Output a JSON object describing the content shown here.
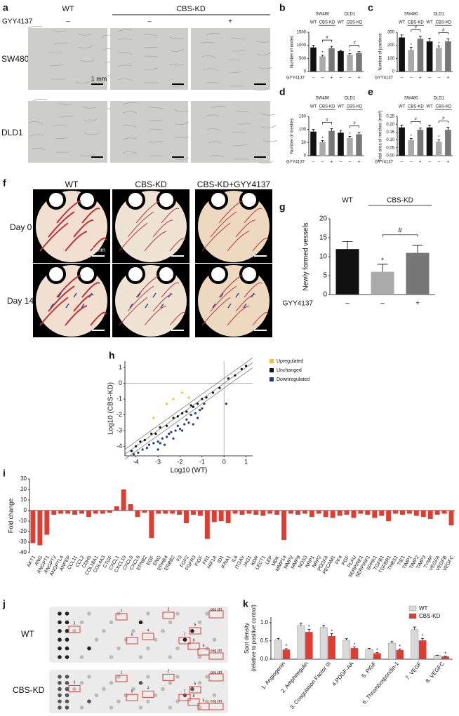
{
  "panel_a": {
    "letter": "a",
    "wt": "WT",
    "cbs_kd": "CBS-KD",
    "treatment_label": "GYY4137",
    "treatment": [
      "–",
      "–",
      "+"
    ],
    "rows": [
      "SW480",
      "DLD1"
    ],
    "scale_bar": "1 mm"
  },
  "panel_f": {
    "letter": "f",
    "columns": [
      "WT",
      "CBS-KD",
      "CBS-KD+GYY4137"
    ],
    "rows": [
      "Day 0",
      "Day 14"
    ],
    "scale_bar": "2 mm"
  },
  "panel_j": {
    "letter": "j",
    "rows": [
      "WT",
      "CBS-KD"
    ],
    "box_labels": [
      "1",
      "2",
      "3",
      "4",
      "5",
      "6",
      "7",
      "8",
      "9"
    ],
    "pos_ctrl": "pos ctrl",
    "neg_ctrl": "neg ctrl"
  },
  "chart_data": [
    {
      "type": "bar",
      "letter": "b",
      "ylabel": "Number of nodes",
      "groups": [
        "SW480",
        "DLD1"
      ],
      "subgroups": [
        "WT",
        "CBS-KD"
      ],
      "treatment_label": "GYY4137",
      "categories": [
        "–",
        "–",
        "+",
        "–",
        "–",
        "+"
      ],
      "values": [
        920,
        580,
        890,
        780,
        640,
        710
      ],
      "errors": [
        80,
        50,
        70,
        40,
        45,
        50
      ],
      "colors": [
        "#111111",
        "#aaaaaa",
        "#777777",
        "#111111",
        "#aaaaaa",
        "#777777"
      ],
      "ylim": [
        0,
        1500
      ],
      "yticks": [
        0,
        500,
        1000,
        1500
      ],
      "star": "*",
      "hash": "#"
    },
    {
      "type": "bar",
      "letter": "c",
      "ylabel": "Number of junctions",
      "groups": [
        "SW480",
        "DLD1"
      ],
      "subgroups": [
        "WT",
        "CBS-KD"
      ],
      "treatment_label": "GYY4137",
      "categories": [
        "–",
        "–",
        "+",
        "–",
        "–",
        "+"
      ],
      "values": [
        260,
        165,
        250,
        230,
        180,
        230
      ],
      "errors": [
        20,
        20,
        20,
        25,
        15,
        20
      ],
      "colors": [
        "#111111",
        "#aaaaaa",
        "#777777",
        "#111111",
        "#aaaaaa",
        "#777777"
      ],
      "ylim": [
        0,
        300
      ],
      "yticks": [
        0,
        100,
        200,
        300
      ],
      "star": "*",
      "hash": "#"
    },
    {
      "type": "bar",
      "letter": "d",
      "ylabel": "Number of meshes",
      "groups": [
        "SW480",
        "DLD1"
      ],
      "subgroups": [
        "WT",
        "CBS-KD"
      ],
      "treatment_label": "GYY4137",
      "categories": [
        "–",
        "–",
        "+",
        "–",
        "–",
        "+"
      ],
      "values": [
        92,
        52,
        95,
        88,
        68,
        82
      ],
      "errors": [
        8,
        6,
        8,
        8,
        6,
        8
      ],
      "colors": [
        "#111111",
        "#aaaaaa",
        "#777777",
        "#111111",
        "#aaaaaa",
        "#777777"
      ],
      "ylim": [
        0,
        150
      ],
      "yticks": [
        0,
        50,
        100,
        150
      ],
      "star": "*",
      "hash": "#"
    },
    {
      "type": "bar",
      "letter": "e",
      "ylabel": "Total area of meshes (mm²)",
      "groups": [
        "SW480",
        "DLD1"
      ],
      "subgroups": [
        "WT",
        "CBS-KD"
      ],
      "treatment_label": "GYY4137",
      "categories": [
        "–",
        "–",
        "+",
        "–",
        "–",
        "+"
      ],
      "values": [
        0.18,
        0.1,
        0.165,
        0.18,
        0.09,
        0.165
      ],
      "errors": [
        0.015,
        0.01,
        0.012,
        0.015,
        0.012,
        0.015
      ],
      "colors": [
        "#111111",
        "#aaaaaa",
        "#777777",
        "#111111",
        "#aaaaaa",
        "#777777"
      ],
      "ylim": [
        0,
        0.25
      ],
      "yticks": [
        {
          "value": 0,
          "label": "0.00"
        },
        {
          "value": 0.05,
          "label": "0.05"
        },
        {
          "value": 0.1,
          "label": "0.10"
        },
        {
          "value": 0.15,
          "label": "0.15"
        },
        {
          "value": 0.2,
          "label": "0.20"
        },
        {
          "value": 0.25,
          "label": "0.25"
        }
      ],
      "star": "*",
      "hash": "#"
    },
    {
      "type": "bar",
      "letter": "g",
      "ylabel": "Newly formed vessels",
      "subgroups": [
        "WT",
        "CBS-KD"
      ],
      "treatment_label": "GYY4137",
      "categories": [
        "–",
        "–",
        "+"
      ],
      "values": [
        12,
        6,
        11
      ],
      "errors": [
        2,
        2,
        2
      ],
      "colors": [
        "#111111",
        "#aaaaaa",
        "#777777"
      ],
      "ylim": [
        0,
        20
      ],
      "yticks": [
        0,
        5,
        10,
        15,
        20
      ],
      "star": "*",
      "hash": "#"
    },
    {
      "type": "scatter",
      "letter": "h",
      "xlabel": "Log10 (WT)",
      "ylabel": "Log10 (CBS-KD)",
      "xlim": [
        -4.5,
        1.3
      ],
      "ylim": [
        -4.6,
        1.4
      ],
      "xticks": [
        -4,
        -3,
        -2,
        -1,
        0,
        1
      ],
      "yticks": [
        -4,
        -3,
        -2,
        -1,
        0,
        1
      ],
      "series": [
        {
          "name": "Upregulated",
          "color": "#f2c12e",
          "x": [
            -3.2,
            -2.6,
            -2.3,
            -1.9,
            -1.6
          ],
          "values": [
            -2.2,
            -1.3,
            -1.0,
            -0.6,
            -0.9
          ]
        },
        {
          "name": "Unchanged",
          "color": "#111111",
          "x": [
            -4.2,
            -4.0,
            -3.8,
            -3.6,
            -3.3,
            -3.1,
            -2.9,
            -2.6,
            -2.3,
            -2.1,
            -1.9,
            -1.7,
            -1.5,
            -1.4,
            -1.2,
            -1.0,
            -0.8,
            -0.5,
            -0.2,
            0.2,
            0.5,
            0.8,
            1.0
          ],
          "values": [
            -4.3,
            -4.0,
            -3.7,
            -3.6,
            -3.2,
            -3.2,
            -2.8,
            -2.7,
            -2.2,
            -2.1,
            -1.9,
            -1.8,
            -1.4,
            -1.5,
            -1.3,
            -1.0,
            -0.9,
            -0.6,
            -0.3,
            0.3,
            0.5,
            0.9,
            1.1
          ]
        },
        {
          "name": "Downregulated",
          "color": "#1f3b78",
          "x": [
            -4.1,
            -3.9,
            -3.7,
            -3.5,
            -3.4,
            -3.2,
            -3.0,
            -2.9,
            -2.8,
            -2.6,
            -2.5,
            -2.4,
            -2.2,
            -2.1,
            -2.0,
            -1.8,
            -1.7,
            -1.6,
            -1.5,
            -1.3,
            -1.2,
            -1.1,
            -1.0,
            -0.9,
            -3.0,
            -2.7,
            -2.3,
            -1.9,
            -1.4,
            0.1
          ],
          "values": [
            -4.5,
            -4.4,
            -4.2,
            -4.1,
            -3.9,
            -3.8,
            -3.7,
            -3.8,
            -3.5,
            -3.4,
            -3.2,
            -3.1,
            -3.0,
            -2.7,
            -2.9,
            -2.6,
            -2.3,
            -2.5,
            -2.0,
            -1.9,
            -2.2,
            -1.7,
            -1.6,
            -1.3,
            -4.2,
            -3.9,
            -3.5,
            -3.0,
            -2.6,
            -1.3
          ]
        }
      ]
    },
    {
      "type": "bar",
      "letter": "i",
      "ylabel": "Fold change",
      "color": "#e03c31",
      "ylim": [
        -40,
        30
      ],
      "yticks": [
        -40,
        -30,
        -20,
        -10,
        0,
        10,
        20,
        30
      ],
      "categories": [
        "AKT1",
        "ANG",
        "ANGPT1",
        "ANGPT2",
        "ANGPTL4",
        "ANPEP",
        "CCL11",
        "CCL2",
        "CDH5",
        "COL18A1",
        "COL4A3",
        "CTGF",
        "CXCL1",
        "CXCL10",
        "CXCL5",
        "CXCL6",
        "EFNB2",
        "EGF",
        "ENG",
        "EPHB4",
        "ERBB2",
        "F3",
        "FGF2",
        "FGFR3",
        "FIGF",
        "FN1",
        "HIF1A",
        "ID1",
        "IFNA1",
        "IL6",
        "ITGAV",
        "JAG1",
        "KDR",
        "LECT1",
        "LEP",
        "MDK",
        "MMP14",
        "MMP2",
        "MMP9",
        "NOS3",
        "NRP1",
        "NRP2",
        "PDGFA",
        "PECAM1",
        "PF4",
        "PGF",
        "PLAU",
        "SERPINE1",
        "SERPINF1",
        "SPHK1",
        "TGFB1",
        "TGFBR1",
        "THBS1",
        "TIE1",
        "TIMP1",
        "TIMP2",
        "TIMP3",
        "TYMP",
        "VEGFA",
        "VEGFB",
        "VEGFC"
      ],
      "values": [
        -31,
        -33,
        -23,
        -4,
        -3,
        -3,
        -4,
        -3,
        -6,
        -3,
        -3,
        -2,
        4,
        20,
        6,
        -6,
        -2,
        -26,
        -3,
        -3,
        -3,
        -4,
        -12,
        -4,
        -5,
        -27,
        -11,
        -10,
        -12,
        -3,
        -4,
        -3,
        -4,
        -5,
        -3,
        -4,
        -28,
        -3,
        -4,
        -3,
        -6,
        -3,
        -6,
        -7,
        -5,
        -4,
        -7,
        -3,
        -4,
        -7,
        -5,
        -10,
        -3,
        -4,
        -3,
        -5,
        -6,
        -8,
        -4,
        -3,
        -14
      ]
    },
    {
      "type": "bar",
      "letter": "k",
      "ylabel": "Spot density",
      "ylabel_sub": "(relative to positive control)",
      "star": "*",
      "categories": [
        "1. Angiogenin",
        "2. Amphiregulin",
        "3. Coagulation Factor III",
        "4.PDGF-AA",
        "5. PlGF",
        "6. Thrombospondin-1",
        "7. VEGF",
        "8. VEGFC"
      ],
      "ylim": [
        0,
        1.15
      ],
      "yticks": [
        {
          "value": 0,
          "label": "0.0"
        },
        {
          "value": 0.5,
          "label": "0.5"
        },
        {
          "value": 1,
          "label": "1.0"
        }
      ],
      "series": [
        {
          "name": "WT",
          "color": "#d9d9d9",
          "values": [
            0.53,
            0.92,
            0.87,
            0.52,
            0.27,
            0.44,
            0.81,
            0.1
          ],
          "errors": [
            0.04,
            0.07,
            0.06,
            0.04,
            0.03,
            0.04,
            0.07,
            0.01
          ]
        },
        {
          "name": "CBS-KD",
          "color": "#e03c31",
          "values": [
            0.26,
            0.74,
            0.63,
            0.3,
            0.16,
            0.25,
            0.51,
            0.07
          ],
          "errors": [
            0.03,
            0.08,
            0.07,
            0.03,
            0.02,
            0.03,
            0.06,
            0.01
          ]
        }
      ]
    }
  ]
}
